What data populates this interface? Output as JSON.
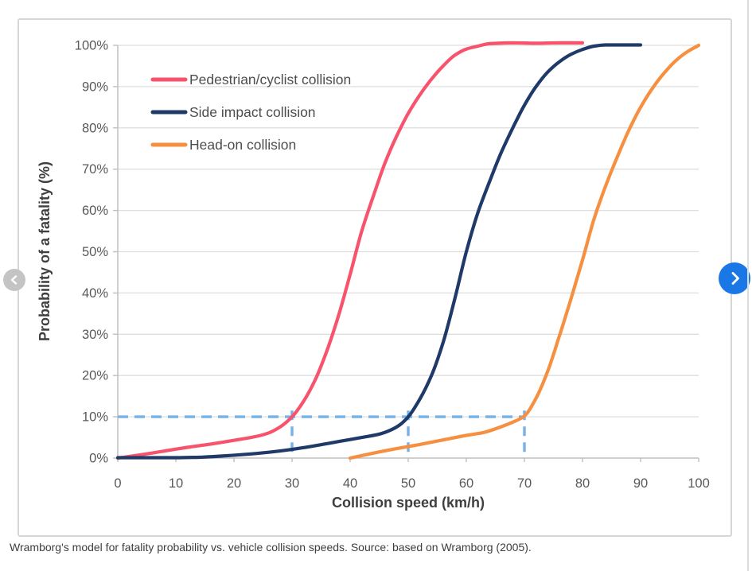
{
  "caption": "Wramborg's model for fatality probability vs. vehicle collision speeds. Source: based on Wramborg (2005).",
  "nav": {
    "prev": {
      "icon": "chevron-left",
      "color": "#C4C4C4"
    },
    "next": {
      "icon": "chevron-right",
      "color": "#1A78E6"
    }
  },
  "chart_data": {
    "type": "line",
    "title": "",
    "xlabel": "Collision speed (km/h)",
    "ylabel": "Probability of a fatality (%)",
    "xlim": [
      0,
      100
    ],
    "ylim": [
      0,
      100
    ],
    "x_ticks": [
      0,
      10,
      20,
      30,
      40,
      50,
      60,
      70,
      80,
      90,
      100
    ],
    "y_ticks": [
      0,
      10,
      20,
      30,
      40,
      50,
      60,
      70,
      80,
      90,
      100
    ],
    "y_tick_suffix": "%",
    "grid": "horizontal",
    "legend_position": "top-left-inside",
    "series": [
      {
        "name": "Pedestrian/cyclist collision",
        "color": "#F7536C",
        "points": [
          [
            0,
            0
          ],
          [
            4,
            0.8
          ],
          [
            8,
            1.7
          ],
          [
            12,
            2.6
          ],
          [
            16,
            3.4
          ],
          [
            20,
            4.3
          ],
          [
            24,
            5.3
          ],
          [
            26,
            6.1
          ],
          [
            28,
            7.6
          ],
          [
            30,
            10
          ],
          [
            32,
            13.8
          ],
          [
            34,
            19
          ],
          [
            36,
            26
          ],
          [
            38,
            34.5
          ],
          [
            40,
            44.5
          ],
          [
            42,
            55
          ],
          [
            44,
            63.5
          ],
          [
            46,
            71.5
          ],
          [
            48,
            78
          ],
          [
            50,
            83.5
          ],
          [
            52,
            88
          ],
          [
            54,
            91.8
          ],
          [
            56,
            95
          ],
          [
            58,
            97.6
          ],
          [
            60,
            99.1
          ],
          [
            62,
            99.8
          ],
          [
            64,
            100.4
          ],
          [
            68,
            100.6
          ],
          [
            72,
            100.5
          ],
          [
            76,
            100.6
          ],
          [
            80,
            100.6
          ]
        ]
      },
      {
        "name": "Side impact collision",
        "color": "#1F3A68",
        "points": [
          [
            0,
            0.1
          ],
          [
            5,
            0.1
          ],
          [
            10,
            0.1
          ],
          [
            14,
            0.2
          ],
          [
            18,
            0.5
          ],
          [
            22,
            0.9
          ],
          [
            26,
            1.4
          ],
          [
            30,
            2.1
          ],
          [
            34,
            3
          ],
          [
            38,
            4
          ],
          [
            42,
            5
          ],
          [
            45,
            5.8
          ],
          [
            47,
            6.8
          ],
          [
            48.5,
            8
          ],
          [
            50,
            10
          ],
          [
            52,
            14.3
          ],
          [
            54,
            20
          ],
          [
            56,
            28
          ],
          [
            58,
            38.5
          ],
          [
            60,
            50
          ],
          [
            62,
            59.5
          ],
          [
            64,
            67
          ],
          [
            66,
            74
          ],
          [
            68,
            80
          ],
          [
            70,
            85.5
          ],
          [
            72,
            90
          ],
          [
            74,
            93.5
          ],
          [
            76,
            96
          ],
          [
            78,
            97.8
          ],
          [
            80,
            99
          ],
          [
            82,
            99.8
          ],
          [
            84,
            100.1
          ],
          [
            87,
            100.1
          ],
          [
            90,
            100.1
          ]
        ]
      },
      {
        "name": "Head-on collision",
        "color": "#F68F40",
        "points": [
          [
            40,
            0
          ],
          [
            44,
            1.2
          ],
          [
            48,
            2.3
          ],
          [
            52,
            3.3
          ],
          [
            56,
            4.4
          ],
          [
            60,
            5.5
          ],
          [
            63,
            6.2
          ],
          [
            66,
            7.6
          ],
          [
            68,
            8.7
          ],
          [
            70,
            10.2
          ],
          [
            72,
            14.5
          ],
          [
            74,
            21
          ],
          [
            76,
            29.5
          ],
          [
            78,
            38.5
          ],
          [
            80,
            48
          ],
          [
            82,
            58
          ],
          [
            84,
            66
          ],
          [
            86,
            73
          ],
          [
            88,
            79.5
          ],
          [
            90,
            85
          ],
          [
            92,
            89.5
          ],
          [
            94,
            93.2
          ],
          [
            96,
            96.2
          ],
          [
            98,
            98.4
          ],
          [
            100,
            100
          ]
        ]
      }
    ],
    "guides": {
      "probability_level": 10,
      "speeds": [
        30,
        50,
        70
      ],
      "color": "#75B2E8",
      "style": "dashed"
    },
    "colors": {
      "grid": "#DEDEDE",
      "axis": "#BFBFBF",
      "tick_text": "#595959",
      "title_text": "#3F3F3F",
      "legend_text": "#4D4D4D"
    }
  }
}
